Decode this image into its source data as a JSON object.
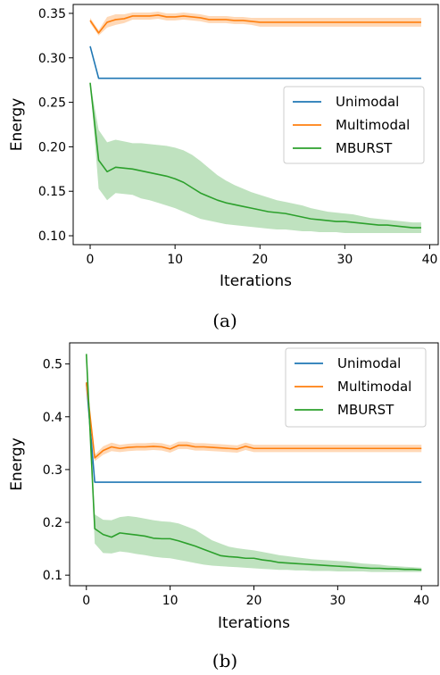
{
  "colors": {
    "unimodal": "#1f77b4",
    "multimodal": "#ff7f0e",
    "mburst": "#2ca02c"
  },
  "chart_data": [
    {
      "type": "line",
      "caption": "(a)",
      "xlabel": "Iterations",
      "ylabel": "Energy",
      "xlim": [
        -2,
        41
      ],
      "ylim": [
        0.09,
        0.36
      ],
      "xticks": [
        0,
        10,
        20,
        30,
        40
      ],
      "yticks": [
        0.1,
        0.15,
        0.2,
        0.25,
        0.3,
        0.35
      ],
      "ytick_labels": [
        "0.10",
        "0.15",
        "0.20",
        "0.25",
        "0.30",
        "0.35"
      ],
      "legend_position": "center-right",
      "series": [
        {
          "name": "Unimodal",
          "color": "unimodal",
          "x": [
            0,
            1,
            39
          ],
          "y": [
            0.313,
            0.277,
            0.277
          ]
        },
        {
          "name": "Multimodal",
          "color": "multimodal",
          "x": [
            0,
            1,
            2,
            3,
            4,
            5,
            6,
            7,
            8,
            9,
            10,
            11,
            12,
            13,
            14,
            15,
            16,
            17,
            18,
            19,
            20,
            39
          ],
          "y": [
            0.342,
            0.328,
            0.34,
            0.343,
            0.344,
            0.347,
            0.347,
            0.347,
            0.348,
            0.346,
            0.346,
            0.347,
            0.346,
            0.345,
            0.343,
            0.343,
            0.343,
            0.342,
            0.342,
            0.341,
            0.34,
            0.34
          ],
          "band": [
            0.003,
            0.003,
            0.006,
            0.006,
            0.005,
            0.004,
            0.004,
            0.004,
            0.004,
            0.004,
            0.004,
            0.004,
            0.004,
            0.004,
            0.004,
            0.004,
            0.004,
            0.004,
            0.004,
            0.004,
            0.005,
            0.005
          ]
        },
        {
          "name": "MBURST",
          "color": "mburst",
          "x": [
            0,
            1,
            2,
            3,
            4,
            5,
            6,
            7,
            8,
            9,
            10,
            11,
            12,
            13,
            14,
            15,
            16,
            17,
            18,
            19,
            20,
            21,
            22,
            23,
            24,
            25,
            26,
            27,
            28,
            29,
            30,
            31,
            32,
            33,
            34,
            35,
            36,
            37,
            38,
            39
          ],
          "y": [
            0.272,
            0.185,
            0.172,
            0.177,
            0.176,
            0.175,
            0.173,
            0.171,
            0.169,
            0.167,
            0.164,
            0.16,
            0.154,
            0.148,
            0.144,
            0.14,
            0.137,
            0.135,
            0.133,
            0.131,
            0.129,
            0.127,
            0.126,
            0.125,
            0.123,
            0.121,
            0.119,
            0.118,
            0.117,
            0.116,
            0.116,
            0.115,
            0.114,
            0.113,
            0.112,
            0.112,
            0.111,
            0.11,
            0.109,
            0.109
          ],
          "lower": [
            0.272,
            0.153,
            0.14,
            0.148,
            0.147,
            0.146,
            0.142,
            0.14,
            0.137,
            0.134,
            0.131,
            0.127,
            0.123,
            0.119,
            0.117,
            0.115,
            0.113,
            0.112,
            0.111,
            0.11,
            0.109,
            0.108,
            0.107,
            0.107,
            0.106,
            0.105,
            0.105,
            0.104,
            0.104,
            0.104,
            0.103,
            0.103,
            0.103,
            0.103,
            0.103,
            0.103,
            0.103,
            0.103,
            0.103,
            0.103
          ],
          "upper": [
            0.272,
            0.219,
            0.205,
            0.208,
            0.206,
            0.204,
            0.204,
            0.203,
            0.202,
            0.201,
            0.199,
            0.196,
            0.191,
            0.184,
            0.176,
            0.168,
            0.162,
            0.157,
            0.153,
            0.149,
            0.146,
            0.143,
            0.14,
            0.138,
            0.136,
            0.134,
            0.131,
            0.129,
            0.127,
            0.126,
            0.125,
            0.124,
            0.122,
            0.12,
            0.119,
            0.118,
            0.117,
            0.116,
            0.115,
            0.115
          ]
        }
      ]
    },
    {
      "type": "line",
      "caption": "(b)",
      "xlabel": "Iterations",
      "ylabel": "Energy",
      "xlim": [
        -2,
        42
      ],
      "ylim": [
        0.08,
        0.54
      ],
      "xticks": [
        0,
        10,
        20,
        30,
        40
      ],
      "yticks": [
        0.1,
        0.2,
        0.3,
        0.4,
        0.5
      ],
      "ytick_labels": [
        "0.1",
        "0.2",
        "0.3",
        "0.4",
        "0.5"
      ],
      "legend_position": "top-right",
      "series": [
        {
          "name": "Unimodal",
          "color": "unimodal",
          "x": [
            0,
            1,
            40
          ],
          "y": [
            0.465,
            0.276,
            0.276
          ]
        },
        {
          "name": "Multimodal",
          "color": "multimodal",
          "x": [
            0,
            1,
            2,
            3,
            4,
            5,
            6,
            7,
            8,
            9,
            10,
            11,
            12,
            13,
            14,
            15,
            16,
            17,
            18,
            19,
            20,
            21,
            40
          ],
          "y": [
            0.465,
            0.322,
            0.336,
            0.343,
            0.34,
            0.342,
            0.343,
            0.343,
            0.344,
            0.343,
            0.339,
            0.346,
            0.346,
            0.343,
            0.343,
            0.342,
            0.341,
            0.34,
            0.339,
            0.344,
            0.34,
            0.34,
            0.34
          ],
          "band": [
            0.003,
            0.006,
            0.008,
            0.008,
            0.007,
            0.007,
            0.007,
            0.007,
            0.007,
            0.007,
            0.007,
            0.007,
            0.007,
            0.007,
            0.007,
            0.007,
            0.007,
            0.007,
            0.007,
            0.007,
            0.007,
            0.007,
            0.007
          ]
        },
        {
          "name": "MBURST",
          "color": "mburst",
          "x": [
            0,
            1,
            2,
            3,
            4,
            5,
            6,
            7,
            8,
            9,
            10,
            11,
            12,
            13,
            14,
            15,
            16,
            17,
            18,
            19,
            20,
            21,
            22,
            23,
            24,
            25,
            26,
            27,
            28,
            29,
            30,
            31,
            32,
            33,
            34,
            35,
            36,
            37,
            38,
            39,
            40
          ],
          "y": [
            0.519,
            0.188,
            0.177,
            0.172,
            0.18,
            0.178,
            0.176,
            0.174,
            0.17,
            0.169,
            0.169,
            0.165,
            0.16,
            0.155,
            0.149,
            0.143,
            0.137,
            0.135,
            0.134,
            0.132,
            0.132,
            0.129,
            0.127,
            0.124,
            0.123,
            0.122,
            0.121,
            0.12,
            0.119,
            0.118,
            0.117,
            0.116,
            0.115,
            0.114,
            0.113,
            0.113,
            0.112,
            0.112,
            0.111,
            0.111,
            0.11
          ],
          "lower": [
            0.519,
            0.16,
            0.142,
            0.141,
            0.145,
            0.143,
            0.14,
            0.138,
            0.135,
            0.133,
            0.132,
            0.129,
            0.126,
            0.123,
            0.12,
            0.118,
            0.117,
            0.116,
            0.115,
            0.114,
            0.113,
            0.112,
            0.111,
            0.11,
            0.11,
            0.109,
            0.109,
            0.108,
            0.108,
            0.108,
            0.107,
            0.107,
            0.107,
            0.107,
            0.106,
            0.106,
            0.106,
            0.106,
            0.106,
            0.106,
            0.106
          ],
          "upper": [
            0.519,
            0.215,
            0.205,
            0.204,
            0.21,
            0.212,
            0.21,
            0.207,
            0.204,
            0.202,
            0.201,
            0.198,
            0.192,
            0.186,
            0.176,
            0.166,
            0.16,
            0.154,
            0.151,
            0.149,
            0.147,
            0.144,
            0.141,
            0.138,
            0.136,
            0.134,
            0.132,
            0.13,
            0.129,
            0.128,
            0.127,
            0.126,
            0.124,
            0.122,
            0.121,
            0.12,
            0.118,
            0.117,
            0.116,
            0.115,
            0.114
          ]
        }
      ]
    }
  ]
}
